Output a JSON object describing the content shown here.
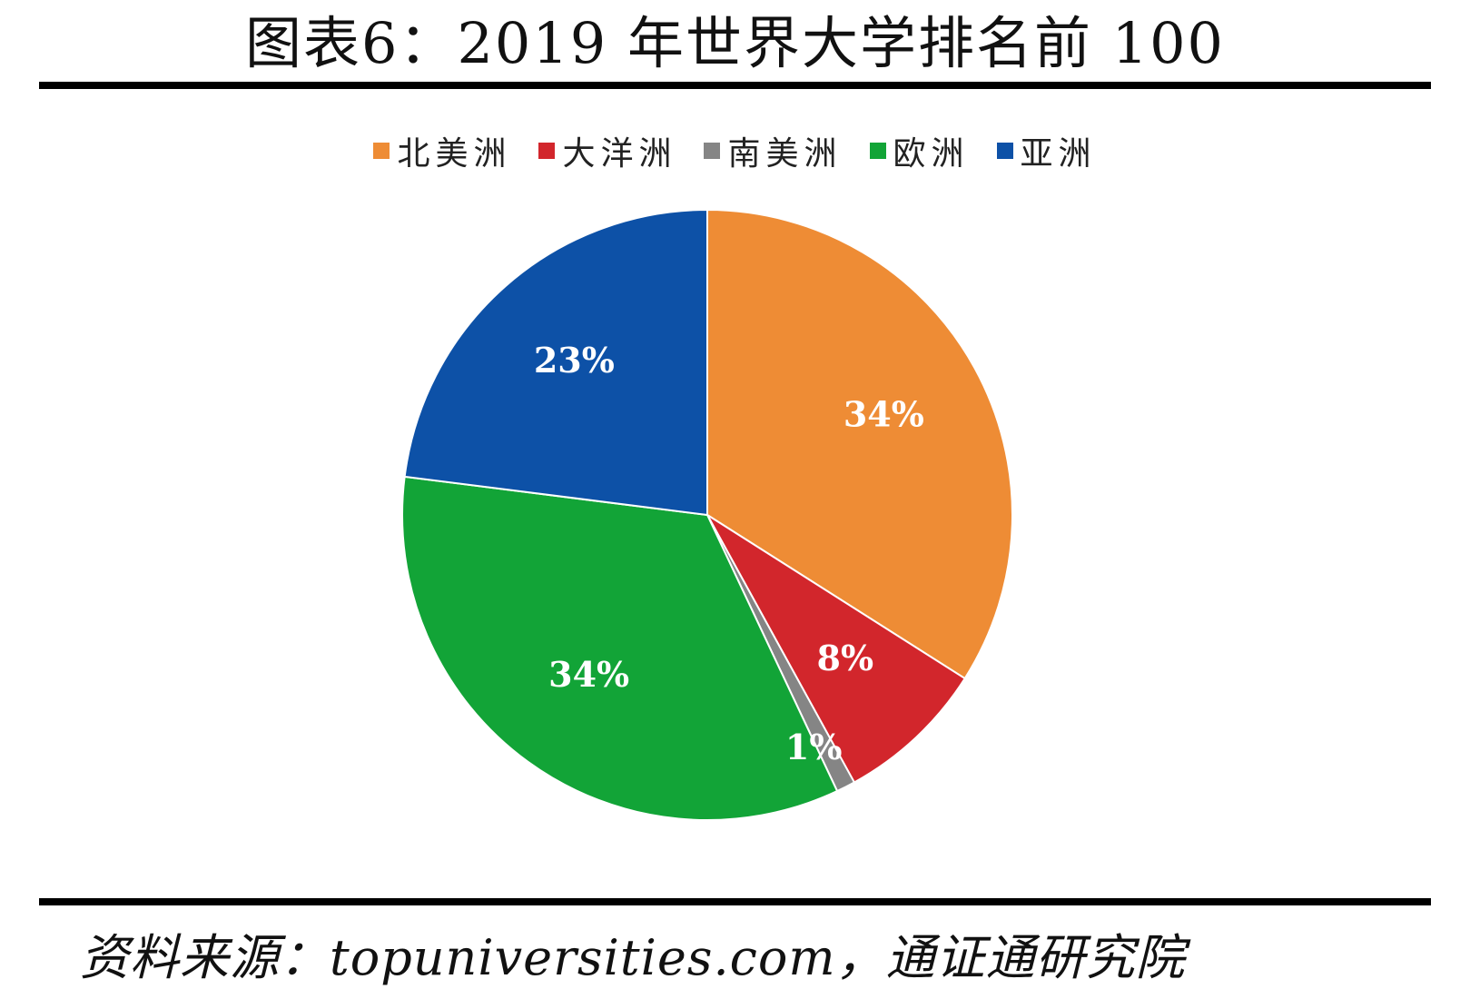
{
  "title": "图表6：2019 年世界大学排名前 100",
  "source": "资料来源：topuniversities.com，通证通研究院",
  "chart_data": {
    "type": "pie",
    "title": "图表6：2019 年世界大学排名前 100",
    "legend_position": "top",
    "start_angle_deg": 0,
    "direction": "clockwise",
    "slices": [
      {
        "label": "北美洲",
        "value": 34,
        "value_label": "34%",
        "color": "#EE8C35"
      },
      {
        "label": "大洋洲",
        "value": 8,
        "value_label": "8%",
        "color": "#D2262C"
      },
      {
        "label": "南美洲",
        "value": 1,
        "value_label": "1%",
        "color": "#858585"
      },
      {
        "label": "欧洲",
        "value": 34,
        "value_label": "34%",
        "color": "#12A437"
      },
      {
        "label": "亚洲",
        "value": 23,
        "value_label": "23%",
        "color": "#0D51A7"
      }
    ]
  }
}
